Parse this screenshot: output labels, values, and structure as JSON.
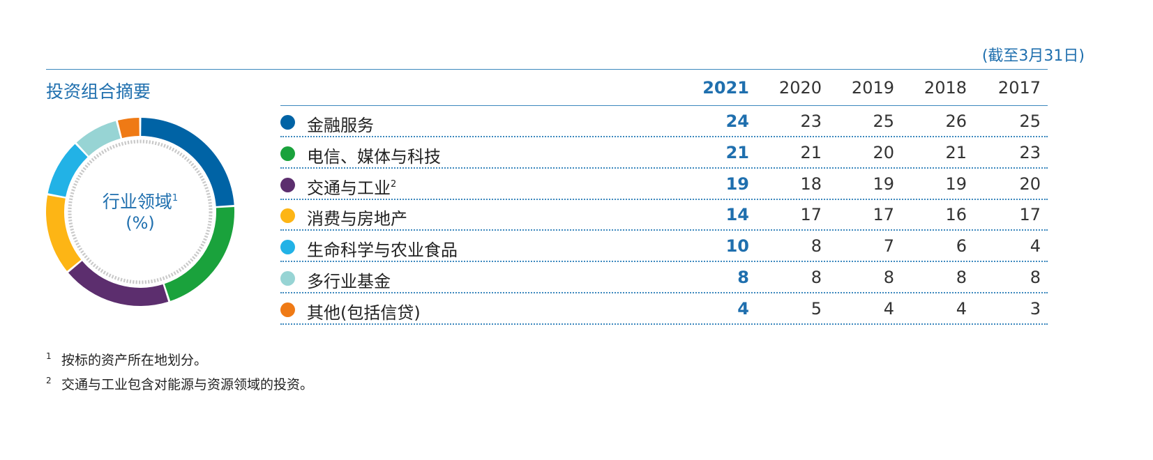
{
  "header": {
    "as_of": "(截至3月31日)",
    "section_title": "投资组合摘要"
  },
  "donut": {
    "label_line1": "行业领域",
    "label_sup": "1",
    "label_line2": "(%)"
  },
  "table": {
    "years": [
      "2021",
      "2020",
      "2019",
      "2018",
      "2017"
    ]
  },
  "chart_data": {
    "type": "table",
    "title": "投资组合摘要",
    "unit": "%",
    "columns": [
      "2021",
      "2020",
      "2019",
      "2018",
      "2017"
    ],
    "current_year": "2021",
    "rows": [
      {
        "name": "金融服务",
        "sup": "",
        "color": "#0063a5",
        "values": [
          24,
          23,
          25,
          26,
          25
        ]
      },
      {
        "name": "电信、媒体与科技",
        "sup": "",
        "color": "#1aa23c",
        "values": [
          21,
          21,
          20,
          21,
          23
        ]
      },
      {
        "name": "交通与工业",
        "sup": "2",
        "color": "#5c2e6e",
        "values": [
          19,
          18,
          19,
          19,
          20
        ]
      },
      {
        "name": "消费与房地产",
        "sup": "",
        "color": "#fdb515",
        "values": [
          14,
          17,
          17,
          16,
          17
        ]
      },
      {
        "name": "生命科学与农业食品",
        "sup": "",
        "color": "#22b2e6",
        "values": [
          10,
          8,
          7,
          6,
          4
        ]
      },
      {
        "name": "多行业基金",
        "sup": "",
        "color": "#97d4d4",
        "values": [
          8,
          8,
          8,
          8,
          8
        ]
      },
      {
        "name": "其他(包括信贷)",
        "sup": "",
        "color": "#ef7a15",
        "values": [
          4,
          5,
          4,
          4,
          3
        ]
      }
    ],
    "donut": {
      "type": "pie",
      "series_year": "2021",
      "categories": [
        "金融服务",
        "电信、媒体与科技",
        "交通与工业",
        "消费与房地产",
        "生命科学与农业食品",
        "多行业基金",
        "其他(包括信贷)"
      ],
      "values": [
        24,
        21,
        19,
        14,
        10,
        8,
        4
      ]
    }
  },
  "footnotes": [
    {
      "num": "1",
      "text": "按标的资产所在地划分。"
    },
    {
      "num": "2",
      "text": "交通与工业包含对能源与资源领域的投资。"
    }
  ]
}
